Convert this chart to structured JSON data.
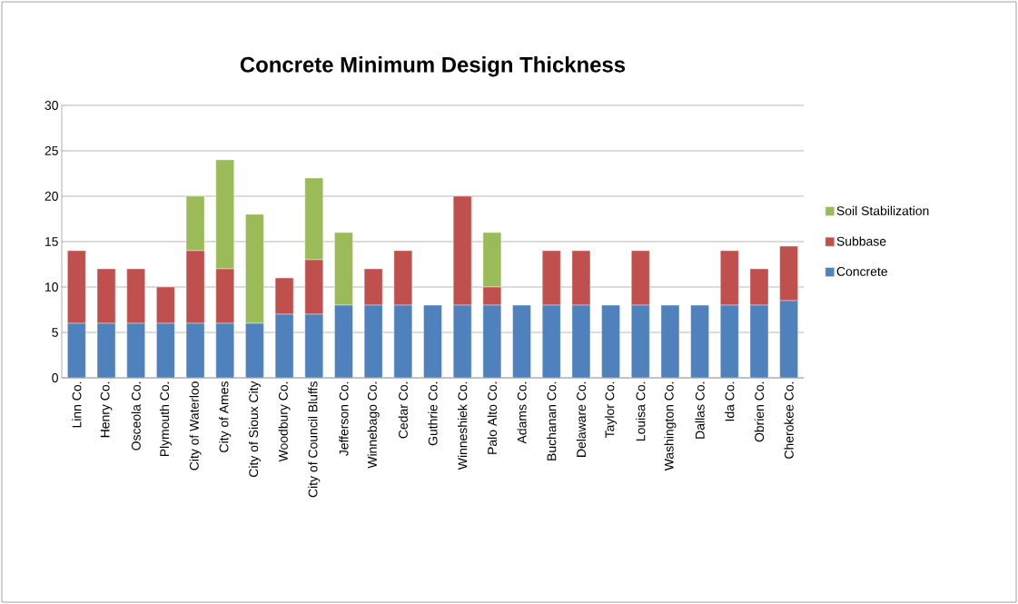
{
  "chart_data": {
    "type": "bar",
    "title": "Concrete Minimum Design Thickness",
    "stacked": true,
    "categories": [
      "Linn Co.",
      "Henry Co.",
      "Osceola Co.",
      "Plymouth Co.",
      "City of Waterloo",
      "City of Ames",
      "City of Sioux City",
      "Woodbury Co.",
      "City of Council Bluffs",
      "Jefferson Co.",
      "Winnebago Co.",
      "Cedar Co.",
      "Guthrie Co.",
      "Winneshiek Co.",
      "Palo Alto Co.",
      "Adams Co.",
      "Buchanan Co.",
      "Delaware Co.",
      "Taylor Co.",
      "Louisa Co.",
      "Washington Co.",
      "Dallas Co.",
      "Ida Co.",
      "Obrien Co.",
      "Cherokee Co."
    ],
    "series": [
      {
        "name": "Concrete",
        "color": "#4f81bd",
        "values": [
          6,
          6,
          6,
          6,
          6,
          6,
          6,
          7,
          7,
          8,
          8,
          8,
          8,
          8,
          8,
          8,
          8,
          8,
          8,
          8,
          8,
          8,
          8,
          8,
          8.5
        ]
      },
      {
        "name": "Subbase",
        "color": "#c0504d",
        "values": [
          8,
          6,
          6,
          4,
          8,
          6,
          0,
          4,
          6,
          0,
          4,
          6,
          0,
          12,
          2,
          0,
          6,
          6,
          0,
          6,
          0,
          0,
          6,
          4,
          6
        ]
      },
      {
        "name": "Soil Stabilization",
        "color": "#9bbb59",
        "values": [
          0,
          0,
          0,
          0,
          6,
          12,
          12,
          0,
          9,
          8,
          0,
          0,
          0,
          0,
          6,
          0,
          0,
          0,
          0,
          0,
          0,
          0,
          0,
          0,
          0
        ]
      }
    ],
    "ylim": [
      0,
      30
    ],
    "yticks": [
      0,
      5,
      10,
      15,
      20,
      25,
      30
    ],
    "grid": "y",
    "legend": "right"
  }
}
